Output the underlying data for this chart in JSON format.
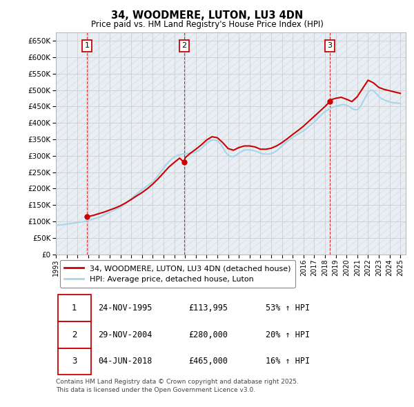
{
  "title": "34, WOODMERE, LUTON, LU3 4DN",
  "subtitle": "Price paid vs. HM Land Registry's House Price Index (HPI)",
  "ylim": [
    0,
    675000
  ],
  "yticks": [
    0,
    50000,
    100000,
    150000,
    200000,
    250000,
    300000,
    350000,
    400000,
    450000,
    500000,
    550000,
    600000,
    650000
  ],
  "sale_dates": [
    1995.9,
    2004.9,
    2018.45
  ],
  "sale_prices": [
    113995,
    280000,
    465000
  ],
  "sale_labels": [
    "1",
    "2",
    "3"
  ],
  "red_color": "#cc0000",
  "blue_color": "#aad4e8",
  "vline_color": "#cc0000",
  "grid_color": "#c8c8c8",
  "bg_color": "#ffffff",
  "plot_bg": "#e8eef4",
  "legend_label_red": "34, WOODMERE, LUTON, LU3 4DN (detached house)",
  "legend_label_blue": "HPI: Average price, detached house, Luton",
  "table_data": [
    [
      "1",
      "24-NOV-1995",
      "£113,995",
      "53% ↑ HPI"
    ],
    [
      "2",
      "29-NOV-2004",
      "£280,000",
      "20% ↑ HPI"
    ],
    [
      "3",
      "04-JUN-2018",
      "£465,000",
      "16% ↑ HPI"
    ]
  ],
  "footer": "Contains HM Land Registry data © Crown copyright and database right 2025.\nThis data is licensed under the Open Government Licence v3.0.",
  "hpi_x": [
    1993.0,
    1993.25,
    1993.5,
    1993.75,
    1994.0,
    1994.25,
    1994.5,
    1994.75,
    1995.0,
    1995.25,
    1995.5,
    1995.75,
    1996.0,
    1996.25,
    1996.5,
    1996.75,
    1997.0,
    1997.25,
    1997.5,
    1997.75,
    1998.0,
    1998.25,
    1998.5,
    1998.75,
    1999.0,
    1999.25,
    1999.5,
    1999.75,
    2000.0,
    2000.25,
    2000.5,
    2000.75,
    2001.0,
    2001.25,
    2001.5,
    2001.75,
    2002.0,
    2002.25,
    2002.5,
    2002.75,
    2003.0,
    2003.25,
    2003.5,
    2003.75,
    2004.0,
    2004.25,
    2004.5,
    2004.75,
    2005.0,
    2005.25,
    2005.5,
    2005.75,
    2006.0,
    2006.25,
    2006.5,
    2006.75,
    2007.0,
    2007.25,
    2007.5,
    2007.75,
    2008.0,
    2008.25,
    2008.5,
    2008.75,
    2009.0,
    2009.25,
    2009.5,
    2009.75,
    2010.0,
    2010.25,
    2010.5,
    2010.75,
    2011.0,
    2011.25,
    2011.5,
    2011.75,
    2012.0,
    2012.25,
    2012.5,
    2012.75,
    2013.0,
    2013.25,
    2013.5,
    2013.75,
    2014.0,
    2014.25,
    2014.5,
    2014.75,
    2015.0,
    2015.25,
    2015.5,
    2015.75,
    2016.0,
    2016.25,
    2016.5,
    2016.75,
    2017.0,
    2017.25,
    2017.5,
    2017.75,
    2018.0,
    2018.25,
    2018.5,
    2018.75,
    2019.0,
    2019.25,
    2019.5,
    2019.75,
    2020.0,
    2020.25,
    2020.5,
    2020.75,
    2021.0,
    2021.25,
    2021.5,
    2021.75,
    2022.0,
    2022.25,
    2022.5,
    2022.75,
    2023.0,
    2023.25,
    2023.5,
    2023.75,
    2024.0,
    2024.25,
    2024.5,
    2024.75,
    2025.0
  ],
  "hpi_y": [
    88000,
    89000,
    90000,
    91000,
    92000,
    93000,
    94000,
    96000,
    97000,
    98000,
    99000,
    101000,
    103000,
    105000,
    108000,
    110000,
    113000,
    116000,
    120000,
    124000,
    128000,
    132000,
    136000,
    140000,
    144000,
    150000,
    156000,
    163000,
    170000,
    177000,
    184000,
    191000,
    197000,
    203000,
    209000,
    215000,
    221000,
    230000,
    240000,
    252000,
    262000,
    273000,
    282000,
    290000,
    296000,
    300000,
    303000,
    305000,
    306000,
    307000,
    308000,
    309000,
    312000,
    316000,
    322000,
    330000,
    338000,
    344000,
    348000,
    348000,
    345000,
    338000,
    326000,
    312000,
    302000,
    298000,
    298000,
    302000,
    308000,
    313000,
    317000,
    318000,
    318000,
    317000,
    315000,
    312000,
    308000,
    306000,
    305000,
    305000,
    307000,
    310000,
    315000,
    322000,
    330000,
    337000,
    344000,
    350000,
    356000,
    361000,
    366000,
    371000,
    376000,
    382000,
    389000,
    396000,
    403000,
    411000,
    419000,
    427000,
    434000,
    439000,
    444000,
    448000,
    451000,
    453000,
    455000,
    456000,
    454000,
    450000,
    444000,
    440000,
    440000,
    448000,
    462000,
    478000,
    493000,
    500000,
    498000,
    490000,
    480000,
    474000,
    470000,
    467000,
    464000,
    462000,
    461000,
    460000,
    460000
  ],
  "price_x": [
    1995.9,
    1996.0,
    1996.5,
    1997.0,
    1997.5,
    1998.0,
    1998.5,
    1999.0,
    1999.5,
    2000.0,
    2000.5,
    2001.0,
    2001.5,
    2002.0,
    2002.5,
    2003.0,
    2003.5,
    2004.0,
    2004.5,
    2004.9,
    2005.0,
    2005.5,
    2006.0,
    2006.5,
    2007.0,
    2007.5,
    2008.0,
    2008.5,
    2009.0,
    2009.5,
    2010.0,
    2010.5,
    2011.0,
    2011.5,
    2012.0,
    2012.5,
    2013.0,
    2013.5,
    2014.0,
    2014.5,
    2015.0,
    2015.5,
    2016.0,
    2016.5,
    2017.0,
    2017.5,
    2018.0,
    2018.45,
    2018.5,
    2019.0,
    2019.5,
    2020.0,
    2020.5,
    2021.0,
    2021.5,
    2022.0,
    2022.5,
    2023.0,
    2023.5,
    2024.0,
    2024.5,
    2025.0
  ],
  "price_y": [
    113995,
    115000,
    119000,
    124000,
    129000,
    135000,
    141000,
    148000,
    157000,
    167000,
    178000,
    188000,
    200000,
    214000,
    230000,
    248000,
    266000,
    280000,
    293000,
    280000,
    294000,
    308000,
    320000,
    333000,
    348000,
    358000,
    355000,
    340000,
    322000,
    317000,
    325000,
    330000,
    330000,
    327000,
    320000,
    320000,
    323000,
    330000,
    340000,
    352000,
    365000,
    377000,
    390000,
    405000,
    420000,
    435000,
    450000,
    465000,
    470000,
    475000,
    478000,
    472000,
    465000,
    480000,
    505000,
    530000,
    522000,
    508000,
    502000,
    498000,
    494000,
    490000
  ]
}
